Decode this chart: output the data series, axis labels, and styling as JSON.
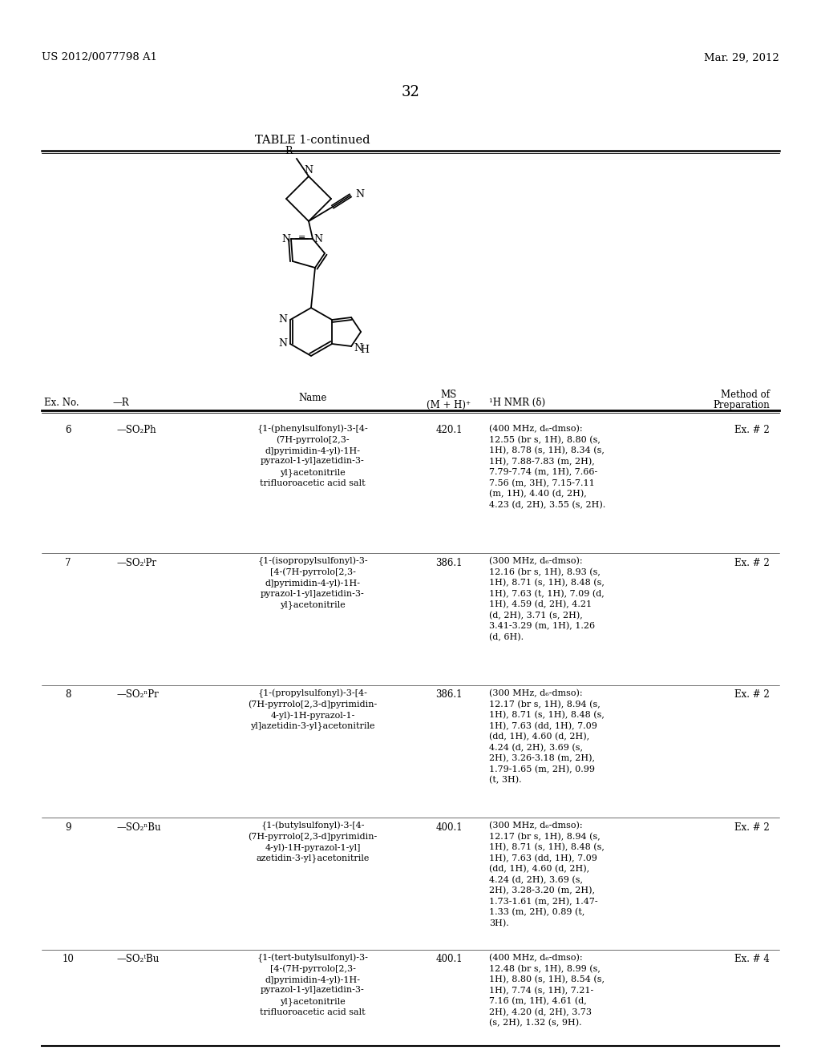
{
  "background_color": "#ffffff",
  "page_header_left": "US 2012/0077798 A1",
  "page_header_right": "Mar. 29, 2012",
  "page_number": "32",
  "table_title": "TABLE 1-continued",
  "rows": [
    {
      "ex_no": "6",
      "r_group": "—SO₂Ph",
      "name": "{1-(phenylsulfonyl)-3-[4-\n(7H-pyrrolo[2,3-\nd]pyrimidin-4-yl)-1H-\npyrazol-1-yl]azetidin-3-\nyl}acetonitrile\ntrifluoroacetic acid salt",
      "ms": "420.1",
      "nmr": "(400 MHz, d₆-dmso):\n12.55 (br s, 1H), 8.80 (s,\n1H), 8.78 (s, 1H), 8.34 (s,\n1H), 7.88-7.83 (m, 2H),\n7.79-7.74 (m, 1H), 7.66-\n7.56 (m, 3H), 7.15-7.11\n(m, 1H), 4.40 (d, 2H),\n4.23 (d, 2H), 3.55 (s, 2H).",
      "method": "Ex. # 2"
    },
    {
      "ex_no": "7",
      "r_group": "—SO₂ⁱPr",
      "name": "{1-(isopropylsulfonyl)-3-\n[4-(7H-pyrrolo[2,3-\nd]pyrimidin-4-yl)-1H-\npyrazol-1-yl]azetidin-3-\nyl}acetonitrile",
      "ms": "386.1",
      "nmr": "(300 MHz, d₆-dmso):\n12.16 (br s, 1H), 8.93 (s,\n1H), 8.71 (s, 1H), 8.48 (s,\n1H), 7.63 (t, 1H), 7.09 (d,\n1H), 4.59 (d, 2H), 4.21\n(d, 2H), 3.71 (s, 2H),\n3.41-3.29 (m, 1H), 1.26\n(d, 6H).",
      "method": "Ex. # 2"
    },
    {
      "ex_no": "8",
      "r_group": "—SO₂ⁿPr",
      "name": "{1-(propylsulfonyl)-3-[4-\n(7H-pyrrolo[2,3-d]pyrimidin-\n4-yl)-1H-pyrazol-1-\nyl]azetidin-3-yl}acetonitrile",
      "ms": "386.1",
      "nmr": "(300 MHz, d₆-dmso):\n12.17 (br s, 1H), 8.94 (s,\n1H), 8.71 (s, 1H), 8.48 (s,\n1H), 7.63 (dd, 1H), 7.09\n(dd, 1H), 4.60 (d, 2H),\n4.24 (d, 2H), 3.69 (s,\n2H), 3.26-3.18 (m, 2H),\n1.79-1.65 (m, 2H), 0.99\n(t, 3H).",
      "method": "Ex. # 2"
    },
    {
      "ex_no": "9",
      "r_group": "—SO₂ⁿBu",
      "name": "{1-(butylsulfonyl)-3-[4-\n(7H-pyrrolo[2,3-d]pyrimidin-\n4-yl)-1H-pyrazol-1-yl]\nazetidin-3-yl}acetonitrile",
      "ms": "400.1",
      "nmr": "(300 MHz, d₆-dmso):\n12.17 (br s, 1H), 8.94 (s,\n1H), 8.71 (s, 1H), 8.48 (s,\n1H), 7.63 (dd, 1H), 7.09\n(dd, 1H), 4.60 (d, 2H),\n4.24 (d, 2H), 3.69 (s,\n2H), 3.28-3.20 (m, 2H),\n1.73-1.61 (m, 2H), 1.47-\n1.33 (m, 2H), 0.89 (t,\n3H).",
      "method": "Ex. # 2"
    },
    {
      "ex_no": "10",
      "r_group": "—SO₂ᵗBu",
      "name": "{1-(tert-butylsulfonyl)-3-\n[4-(7H-pyrrolo[2,3-\nd]pyrimidin-4-yl)-1H-\npyrazol-1-yl]azetidin-3-\nyl}acetonitrile\ntrifluoroacetic acid salt",
      "ms": "400.1",
      "nmr": "(400 MHz, d₆-dmso):\n12.48 (br s, 1H), 8.99 (s,\n1H), 8.80 (s, 1H), 8.54 (s,\n1H), 7.74 (s, 1H), 7.21-\n7.16 (m, 1H), 4.61 (d,\n2H), 4.20 (d, 2H), 3.73\n(s, 2H), 1.32 (s, 9H).",
      "method": "Ex. # 4"
    }
  ]
}
